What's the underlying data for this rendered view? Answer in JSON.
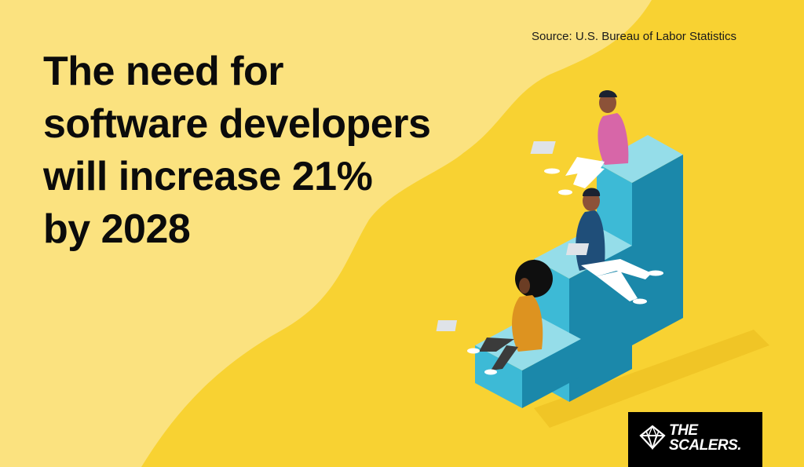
{
  "headline": {
    "lines": [
      "The need for",
      "software developers",
      "will increase 21%",
      "by 2028"
    ]
  },
  "source": "Source: U.S. Bureau of Labor Statistics",
  "logo": {
    "line1": "THE",
    "line2": "SCALERS."
  },
  "colors": {
    "background_light": "#fbe27f",
    "background_dark": "#f8d232",
    "stair_top": "#95dde9",
    "stair_left": "#3dbad6",
    "stair_right": "#1b88aa",
    "text": "#0b0b0b"
  },
  "illustration": {
    "description_icons": [
      "stairs-icon",
      "person-with-laptop-icon"
    ]
  }
}
